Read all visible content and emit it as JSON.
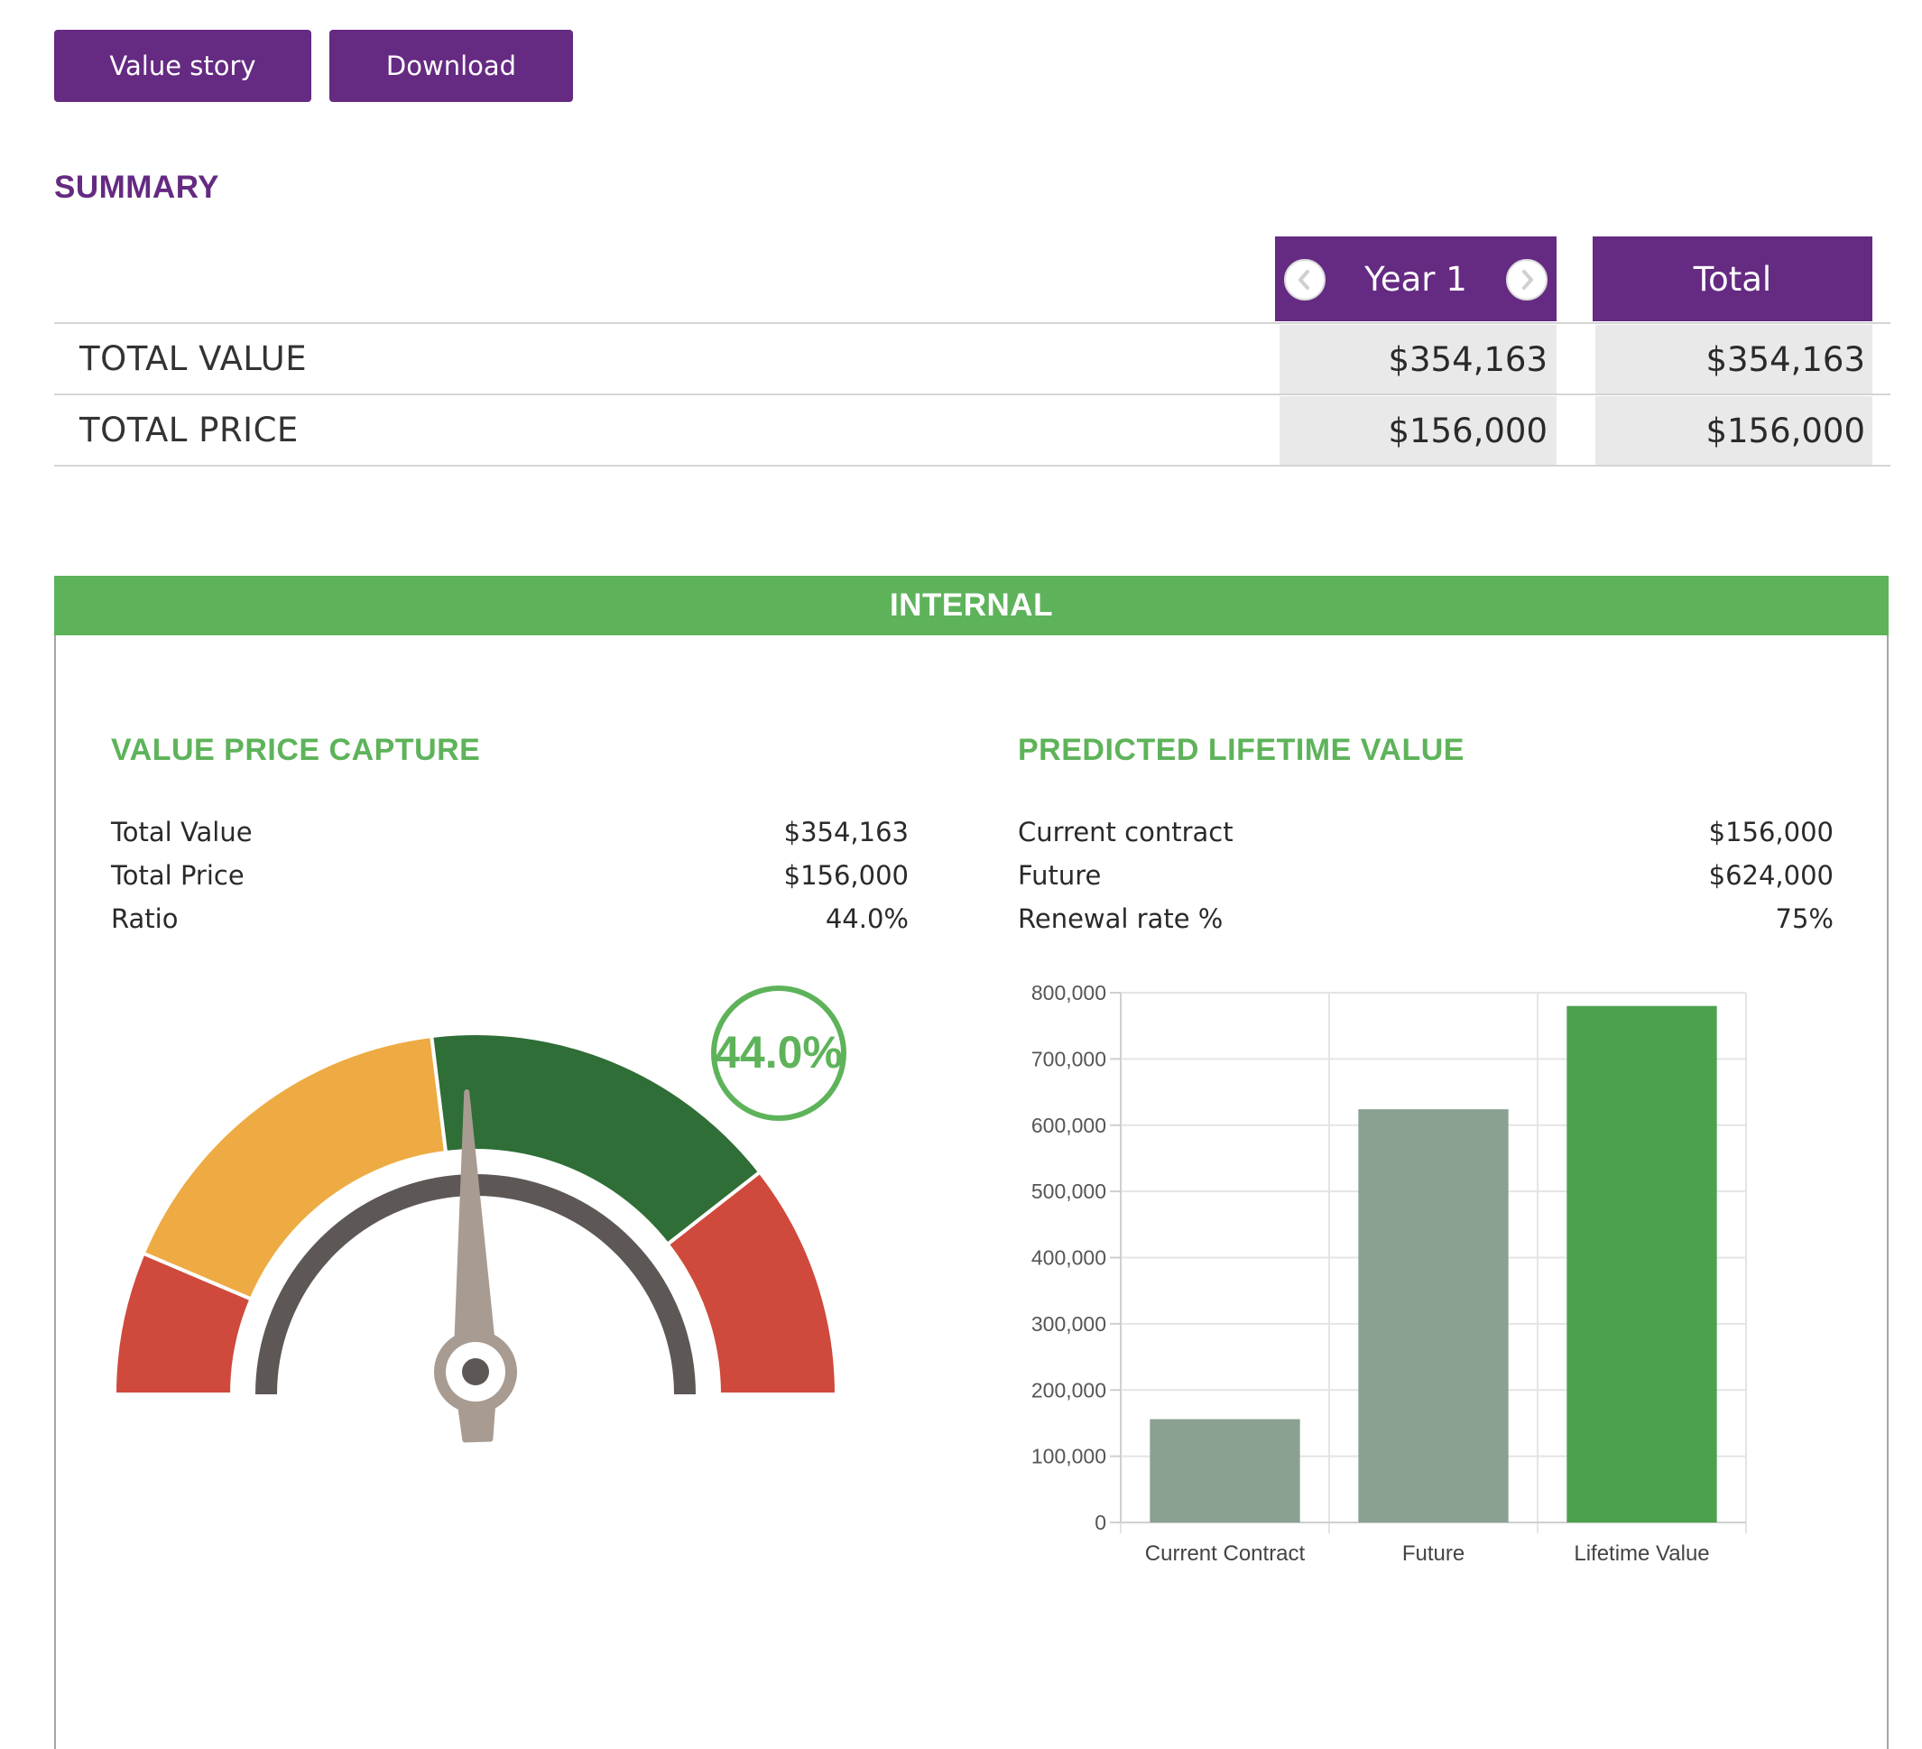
{
  "toolbar": {
    "value_story_label": "Value story",
    "download_label": "Download"
  },
  "summary": {
    "title": "SUMMARY",
    "columns": {
      "year_label": "Year 1",
      "total_label": "Total"
    },
    "rows": [
      {
        "label": "TOTAL VALUE",
        "year": "$354,163",
        "total": "$354,163"
      },
      {
        "label": "TOTAL PRICE",
        "year": "$156,000",
        "total": "$156,000"
      }
    ]
  },
  "internal": {
    "title": "INTERNAL",
    "value_price_capture": {
      "title": "VALUE PRICE CAPTURE",
      "rows": [
        {
          "label": "Total Value",
          "value": "$354,163"
        },
        {
          "label": "Total Price",
          "value": "$156,000"
        },
        {
          "label": "Ratio",
          "value": "44.0%"
        }
      ],
      "gauge": {
        "value_label": "44.0%",
        "value": 44.0
      }
    },
    "predicted_lifetime_value": {
      "title": "PREDICTED LIFETIME VALUE",
      "rows": [
        {
          "label": "Current contract",
          "value": "$156,000"
        },
        {
          "label": "Future",
          "value": "$624,000"
        },
        {
          "label": "Renewal rate %",
          "value": "75%"
        }
      ]
    }
  },
  "colors": {
    "brand_purple": "#652a82",
    "accent_green": "#5eb35a",
    "gauge_red": "#cf4a3c",
    "gauge_orange": "#eeab43",
    "gauge_dark_green": "#2f6e37",
    "bar_gray_green": "#8aa191",
    "bar_green": "#4ca14d"
  },
  "chart_data": {
    "type": "bar",
    "categories": [
      "Current Contract",
      "Future",
      "Lifetime Value"
    ],
    "values": [
      156000,
      624000,
      780000
    ],
    "ylim": [
      0,
      800000
    ],
    "yticks": [
      "0",
      "100,000",
      "200,000",
      "300,000",
      "400,000",
      "500,000",
      "600,000",
      "700,000",
      "800,000"
    ],
    "grid": true,
    "legend": "none",
    "title": "",
    "xlabel": "",
    "ylabel": ""
  }
}
